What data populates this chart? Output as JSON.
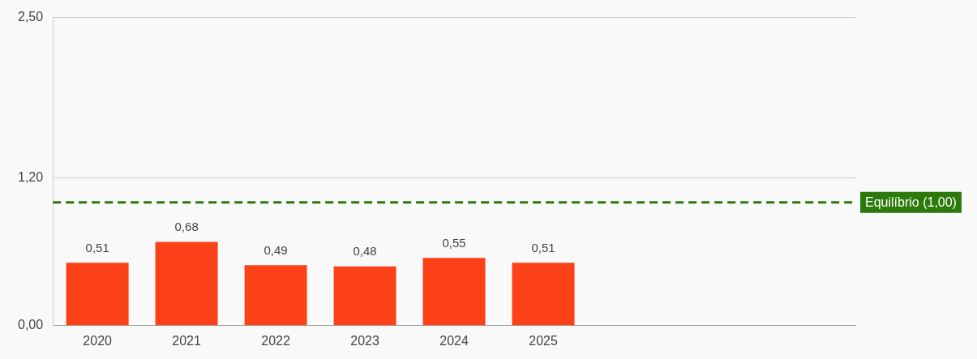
{
  "chart_data": {
    "type": "bar",
    "categories": [
      "2020",
      "2021",
      "2022",
      "2023",
      "2024",
      "2025",
      null,
      null,
      null
    ],
    "values": [
      0.51,
      0.68,
      0.49,
      0.48,
      0.55,
      0.51,
      null,
      null,
      null
    ],
    "color": "#fc4119",
    "value_labels": [
      "0,51",
      "0,68",
      "0,49",
      "0,48",
      "0,55",
      "0,51",
      null,
      null,
      null
    ],
    "ylim": [
      0,
      2.5
    ],
    "yticks": [
      {
        "value": 0,
        "label": "0,00"
      },
      {
        "value": 1.2,
        "label": "1,20"
      },
      {
        "value": 2.5,
        "label": "2,50"
      }
    ],
    "grid": "y",
    "legend": false,
    "ref_lines": [
      {
        "axis": "y",
        "value": 1,
        "label": "Equilíbrio (1,00)",
        "color": "#2b7a0b",
        "line_style": "dashed"
      }
    ]
  }
}
